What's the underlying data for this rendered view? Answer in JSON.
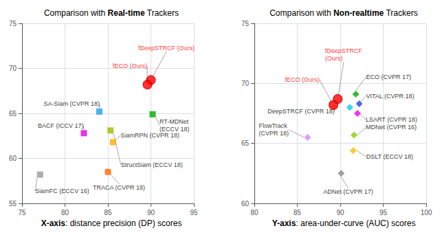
{
  "chart_data": [
    {
      "type": "scatter",
      "title": "Comparison with Real-time Trackers",
      "title_bold": "Real-time",
      "annotations": [
        {
          "text": "X-axis: distance precision (DP) scores",
          "bold": "X-axis"
        }
      ],
      "xlim": [
        75,
        95
      ],
      "ylim": [
        55,
        75
      ],
      "xticks": [
        75,
        80,
        85,
        90,
        95
      ],
      "yticks": [
        55,
        60,
        65,
        70,
        75
      ],
      "grid": true,
      "series": [
        {
          "name": "fDeepSTRCF (Ours)",
          "color": "#ff0000",
          "marker": "circle",
          "label_color": "#ff0000",
          "x": [
            90.0
          ],
          "values": [
            68.7
          ]
        },
        {
          "name": "fECO (Ours)",
          "color": "#ff0000",
          "marker": "circle",
          "label_color": "#ff0000",
          "x": [
            89.6
          ],
          "values": [
            68.2
          ]
        },
        {
          "name": "SA-Siam (CVPR 18)",
          "color": "#1fa0e8",
          "marker": "square",
          "x": [
            84.0
          ],
          "values": [
            65.2
          ]
        },
        {
          "name": "RT-MDNet\n(ECCV 18)",
          "color": "#00aa00",
          "marker": "square",
          "x": [
            90.2
          ],
          "values": [
            64.9
          ]
        },
        {
          "name": "BACF (ICCV 17)",
          "color": "#dd00dd",
          "marker": "square",
          "x": [
            82.2
          ],
          "values": [
            62.8
          ]
        },
        {
          "name": "SiamRPN (CVPR 18)",
          "color": "#ffaa00",
          "marker": "square",
          "x": [
            85.6
          ],
          "values": [
            61.8
          ]
        },
        {
          "name": "StructSiam (ECCV 18)",
          "color": "#99bb00",
          "marker": "square",
          "x": [
            85.3
          ],
          "values": [
            63.1
          ]
        },
        {
          "name": "TRACA (CVPR 18)",
          "color": "#ff6600",
          "marker": "square",
          "x": [
            85.0
          ],
          "values": [
            58.5
          ]
        },
        {
          "name": "SiamFC (ECCV 16)",
          "color": "#999999",
          "marker": "square",
          "x": [
            77.1
          ],
          "values": [
            58.2
          ]
        }
      ]
    },
    {
      "type": "scatter",
      "title": "Comparison with Non-realtime Trackers",
      "title_bold": "Non-realtime",
      "annotations": [
        {
          "text": "Y-axis: area-under-curve (AUC) scores",
          "bold": "Y-axis"
        }
      ],
      "xlim": [
        80,
        100
      ],
      "ylim": [
        60,
        75
      ],
      "xticks": [
        80,
        85,
        90,
        95,
        100
      ],
      "yticks": [
        60,
        65,
        70,
        75
      ],
      "grid": true,
      "series": [
        {
          "name": "fDeepSTRCF\n(Ours)",
          "color": "#ff0000",
          "marker": "circle",
          "label_color": "#ff0000",
          "x": [
            89.7
          ],
          "values": [
            68.7
          ]
        },
        {
          "name": "fECO (Ours)",
          "color": "#ff0000",
          "marker": "circle",
          "label_color": "#ff0000",
          "x": [
            89.2
          ],
          "values": [
            68.2
          ]
        },
        {
          "name": "ECO (CVPR 17)",
          "color": "#00aa00",
          "marker": "diamond",
          "x": [
            91.8
          ],
          "values": [
            69.1
          ]
        },
        {
          "name": "VITAL (CVPR 18)",
          "color": "#2244dd",
          "marker": "diamond",
          "x": [
            92.2
          ],
          "values": [
            68.3
          ]
        },
        {
          "name": "LSART (CVPR 18)",
          "color": "#ee00ee",
          "marker": "diamond",
          "x": [
            92.0
          ],
          "values": [
            67.5
          ]
        },
        {
          "name": "MDNet (CVPR 16)",
          "color": "#88cc00",
          "marker": "diamond",
          "x": [
            91.6
          ],
          "values": [
            65.7
          ]
        },
        {
          "name": "DSLT (ECCV 18)",
          "color": "#ffbb00",
          "marker": "diamond",
          "x": [
            91.5
          ],
          "values": [
            64.4
          ]
        },
        {
          "name": "DeepSTRCF (CVPR 18)",
          "color": "#ffcc88",
          "marker": "diamond",
          "x": [
            89.3
          ],
          "values": [
            68.0
          ]
        },
        {
          "name": "FlowTrack\n(CVPR 18)",
          "color": "#cc88ff",
          "marker": "diamond",
          "x": [
            86.2
          ],
          "values": [
            65.5
          ]
        },
        {
          "name": "ADNet (CVPR 17)",
          "color": "#888888",
          "marker": "diamond",
          "x": [
            90.1
          ],
          "values": [
            62.5
          ]
        },
        {
          "color": "#00ccff",
          "marker": "diamond",
          "x": [
            91.1
          ],
          "values": [
            68.0
          ]
        }
      ]
    }
  ]
}
